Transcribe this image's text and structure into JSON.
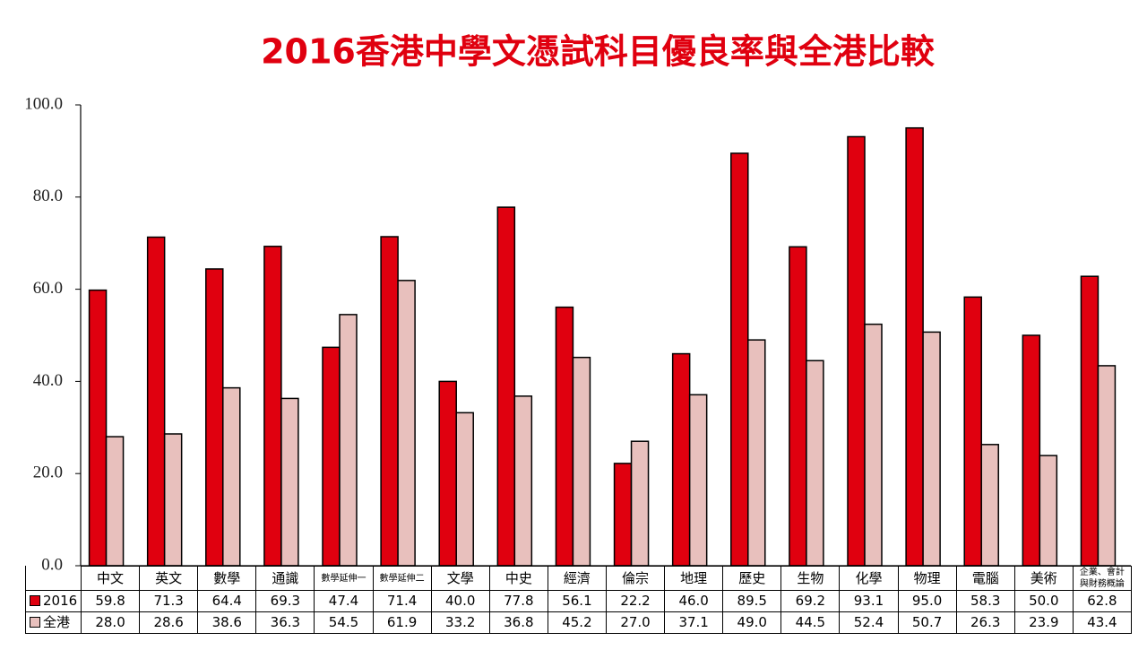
{
  "chart_data": {
    "type": "bar",
    "title": "2016香港中學文憑試科目優良率與全港比較",
    "categories": [
      "中文",
      "英文",
      "數學",
      "通識",
      "數學延伸一",
      "數學延伸二",
      "文學",
      "中史",
      "經濟",
      "倫宗",
      "地理",
      "歷史",
      "生物",
      "化學",
      "物理",
      "電腦",
      "美術",
      "企業、會計與財務概論"
    ],
    "series": [
      {
        "name": "2016",
        "color": "#e0000f",
        "values": [
          59.8,
          71.3,
          64.4,
          69.3,
          47.4,
          71.4,
          40.0,
          77.8,
          56.1,
          22.2,
          46.0,
          89.5,
          69.2,
          93.1,
          95.0,
          58.3,
          50.0,
          62.8
        ],
        "value_labels": [
          "59.8",
          "71.3",
          "64.4",
          "69.3",
          "47.4",
          "71.4",
          "40.0",
          "77.8",
          "56.1",
          "22.2",
          "46.0",
          "89.5",
          "69.2",
          "93.1",
          "95.0",
          "58.3",
          "50.0",
          "62.8"
        ]
      },
      {
        "name": "全港",
        "color": "#e8c0bd",
        "values": [
          28.0,
          28.6,
          38.6,
          36.3,
          54.5,
          61.9,
          33.2,
          36.8,
          45.2,
          27.0,
          37.1,
          49.0,
          44.5,
          52.4,
          50.7,
          26.3,
          23.9,
          43.4
        ],
        "value_labels": [
          "28.0",
          "28.6",
          "38.6",
          "36.3",
          "54.5",
          "61.9",
          "33.2",
          "36.8",
          "45.2",
          "27.0",
          "37.1",
          "49.0",
          "44.5",
          "52.4",
          "50.7",
          "26.3",
          "23.9",
          "43.4"
        ]
      }
    ],
    "ylim": [
      0,
      100
    ],
    "yticks": [
      {
        "value": 0,
        "label": "0.0"
      },
      {
        "value": 20,
        "label": "20.0"
      },
      {
        "value": 40,
        "label": "40.0"
      },
      {
        "value": 60,
        "label": "60.0"
      },
      {
        "value": 80,
        "label": "80.0"
      },
      {
        "value": 100,
        "label": "100.0"
      }
    ],
    "grid": false
  }
}
